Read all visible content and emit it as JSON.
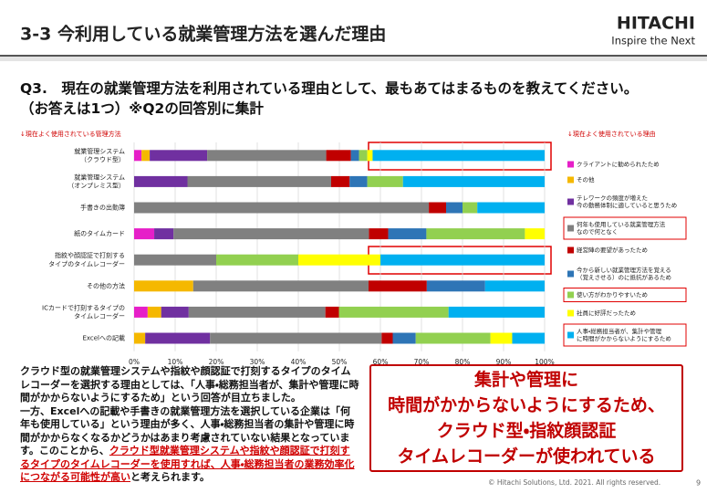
{
  "header": {
    "title": "3-3 今利用している就業管理方法を選んだ理由",
    "brand": "HITACHI",
    "tagline": "Inspire the Next"
  },
  "question": "Q3.　現在の就業管理方法を利用されている理由として、最もあてはまるものを教えてください。（お答えは1つ）※Q2の回答別に集計",
  "chart_data": {
    "type": "stacked-barh",
    "y_caption": "↓現在よく使用されている管理方法",
    "legend_caption": "↓現在よく使用されている理由",
    "categories": [
      "就業管理システム\n（クラウド型）",
      "就業管理システム\n（オンプレミス型）",
      "手書きの出勤簿",
      "紙のタイムカード",
      "指紋や顔認証で打刻する\nタイプのタイムレコーダー",
      "その他の方法",
      "ICカードで打刻するタイプの\nタイムレコーダー",
      "Excelへの記載"
    ],
    "series": [
      {
        "name": "クライアントに勧められたため",
        "color": "#e61fc8",
        "values": [
          1.8,
          0,
          0,
          4.9,
          0,
          0,
          3.3,
          0
        ]
      },
      {
        "name": "その他",
        "color": "#f5b800",
        "values": [
          2,
          0,
          0,
          0,
          0,
          14.4,
          3.3,
          2.7
        ]
      },
      {
        "name": "テレワークの頻度が増えた\n今の勤務体制に適していると思うため",
        "color": "#7030a0",
        "values": [
          14,
          13,
          0,
          4.7,
          0,
          0,
          6.7,
          15.8
        ]
      },
      {
        "name": "何年も使用している就業管理方法\nなので何となく",
        "color": "#808080",
        "values": [
          29,
          35,
          71.8,
          47.6,
          20,
          42.7,
          33.3,
          41.8
        ]
      },
      {
        "name": "経営陣の要望があったため",
        "color": "#c00000",
        "values": [
          6,
          4.5,
          4.2,
          4.7,
          0,
          14.2,
          3.3,
          2.7
        ]
      },
      {
        "name": "今から新しい就業管理方法を覚える\n（覚えさせる）のに抵抗があるため",
        "color": "#2e75b6",
        "values": [
          2,
          4.3,
          4,
          9.3,
          0,
          14.2,
          0,
          5.6
        ]
      },
      {
        "name": "使い方がわかりやすいため",
        "color": "#92d050",
        "values": [
          2,
          8.7,
          3.6,
          24,
          20,
          0,
          26.7,
          18.2
        ]
      },
      {
        "name": "社員に好評だったため",
        "color": "#ffff00",
        "values": [
          1.3,
          0,
          0,
          4.8,
          20,
          0,
          0,
          5.3
        ]
      },
      {
        "name": "人事・総務担当者が、集計や管理\nに時間がかからないようにするため",
        "color": "#00b0f0",
        "values": [
          41.9,
          34.5,
          16.4,
          0,
          40,
          14.5,
          23.4,
          7.9
        ]
      }
    ],
    "xlim": [
      0,
      100
    ],
    "xticks": [
      {
        "value": 0,
        "label": "0%"
      },
      {
        "value": 10,
        "label": "10%"
      },
      {
        "value": 20,
        "label": "20%"
      },
      {
        "value": 30,
        "label": "30%"
      },
      {
        "value": 40,
        "label": "40%"
      },
      {
        "value": 50,
        "label": "50%"
      },
      {
        "value": 60,
        "label": "60%"
      },
      {
        "value": 70,
        "label": "70%"
      },
      {
        "value": 80,
        "label": "80%"
      },
      {
        "value": 90,
        "label": "90%"
      },
      {
        "value": 100,
        "label": "100%"
      }
    ],
    "grid": true
  },
  "summary": {
    "parts": [
      "クラウド型の就業管理システムや指紋や顔認証で打刻するタイプのタイムレコーダーを選択する理由としては、「人事・総務担当者が、集計や管理に時間がかからないようにするため」という回答が目立ちました。",
      "一方、Excelへの記載や手書きの就業管理方法を選択している企業は「何年も使用している」という理由が多く、人事・総務担当者の集計や管理に時間がかからなくなるかどうかはあまり考慮されていない結果となっています。このことから、",
      "クラウド型就業管理システムや指紋や顔認証で打刻するタイプのタイムレコーダーを使用すれば、人事・総務担当者の業務効率化につながる可能性が高い",
      "と考えられます。"
    ]
  },
  "callout": [
    "集計や管理に",
    "時間がかからないようにするため、",
    "クラウド型・指紋顔認証",
    "タイムレコーダーが使われている"
  ],
  "footer": {
    "copyright": "© Hitachi Solutions, Ltd. 2021. All rights reserved.",
    "page": "9"
  }
}
